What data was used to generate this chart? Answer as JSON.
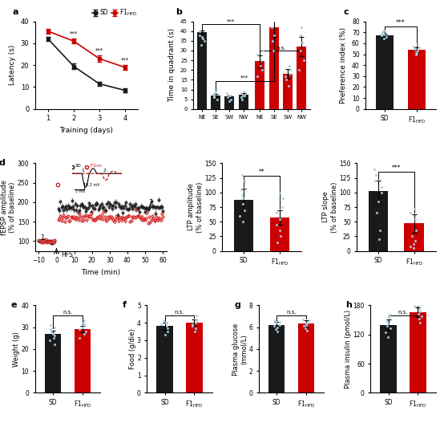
{
  "panel_a": {
    "sd_mean": [
      32,
      19.5,
      11.5,
      8.5
    ],
    "sd_err": [
      1.0,
      1.2,
      1.0,
      0.8
    ],
    "hfd_mean": [
      35.5,
      31,
      23,
      19
    ],
    "hfd_err": [
      1.0,
      1.2,
      1.5,
      1.2
    ],
    "days": [
      1,
      2,
      3,
      4
    ],
    "ylim": [
      0,
      40
    ],
    "yticks": [
      0,
      10,
      20,
      30,
      40
    ],
    "xlabel": "Training (days)",
    "ylabel": "Latency (s)",
    "sig_days": [
      2,
      3,
      4
    ],
    "sig_labels": [
      "***",
      "***",
      "***"
    ]
  },
  "panel_b": {
    "sd_means": [
      39.5,
      7.0,
      6.5,
      7.5
    ],
    "sd_errs": [
      0.8,
      0.8,
      0.6,
      0.7
    ],
    "hfd_means": [
      24.5,
      42.0,
      18.0,
      32.0
    ],
    "hfd_errs": [
      3.0,
      5.0,
      2.5,
      5.0
    ],
    "quadrants": [
      "NE",
      "SE",
      "SW",
      "NW"
    ],
    "ylim": [
      0,
      45
    ],
    "yticks": [
      0,
      5,
      10,
      15,
      20,
      25,
      30,
      35,
      40,
      45
    ],
    "ylabel": "Time in quadrant (s)"
  },
  "panel_c": {
    "sd_mean": 67,
    "sd_err": 1.5,
    "hfd_mean": 54,
    "hfd_err": 2.0,
    "ylim": [
      0,
      80
    ],
    "yticks": [
      0,
      10,
      20,
      30,
      40,
      50,
      60,
      70,
      80
    ],
    "ylabel": "Preference index (%)",
    "sig": "***"
  },
  "panel_d_time": {
    "xlabel": "Time (min)",
    "ylabel": "fEPSP amplitude\n(% of baseline)",
    "ylim": [
      75,
      300
    ],
    "yticks": [
      100,
      150,
      200,
      250,
      300
    ],
    "xticks": [
      -10,
      0,
      10,
      20,
      30,
      40,
      50,
      60
    ]
  },
  "panel_d_ltp_amp": {
    "sd_mean": 88,
    "sd_err": 18,
    "hfd_mean": 57,
    "hfd_err": 12,
    "ylim": [
      0,
      150
    ],
    "yticks": [
      0,
      25,
      50,
      75,
      100,
      125,
      150
    ],
    "ylabel": "LTP amplitude\n(% of baseline)",
    "sig": "**"
  },
  "panel_d_ltp_slope": {
    "sd_mean": 102,
    "sd_err": 18,
    "hfd_mean": 47,
    "hfd_err": 16,
    "ylim": [
      0,
      150
    ],
    "yticks": [
      0,
      25,
      50,
      75,
      100,
      125,
      150
    ],
    "ylabel": "LTP slope\n(% of baseline)",
    "sig": "***"
  },
  "panel_e": {
    "sd_mean": 27,
    "sd_err": 1.5,
    "hfd_mean": 29,
    "hfd_err": 1.5,
    "ylim": [
      0,
      40
    ],
    "yticks": [
      0,
      10,
      20,
      30,
      40
    ],
    "ylabel": "Weight (g)",
    "sig": "n.s."
  },
  "panel_f": {
    "sd_mean": 3.8,
    "sd_err": 0.2,
    "hfd_mean": 4.0,
    "hfd_err": 0.2,
    "ylim": [
      0,
      5
    ],
    "yticks": [
      0,
      1,
      2,
      3,
      4,
      5
    ],
    "ylabel": "Food (g/die)",
    "sig": "n.s."
  },
  "panel_g": {
    "sd_mean": 6.2,
    "sd_err": 0.3,
    "hfd_mean": 6.3,
    "hfd_err": 0.3,
    "ylim": [
      0,
      8
    ],
    "yticks": [
      0,
      2,
      4,
      6,
      8
    ],
    "ylabel": "Plasma glucose\n(mmol/L)",
    "sig": "n.s."
  },
  "panel_h": {
    "sd_mean": 140,
    "sd_err": 10,
    "hfd_mean": 165,
    "hfd_err": 10,
    "ylim": [
      0,
      180
    ],
    "yticks": [
      0,
      60,
      120,
      180
    ],
    "ylabel": "Plasma insulin (pmol/L)",
    "sig": "n.s."
  },
  "colors": {
    "sd": "#1a1a1a",
    "hfd": "#cc0000",
    "scatter": "#a8cce0"
  }
}
